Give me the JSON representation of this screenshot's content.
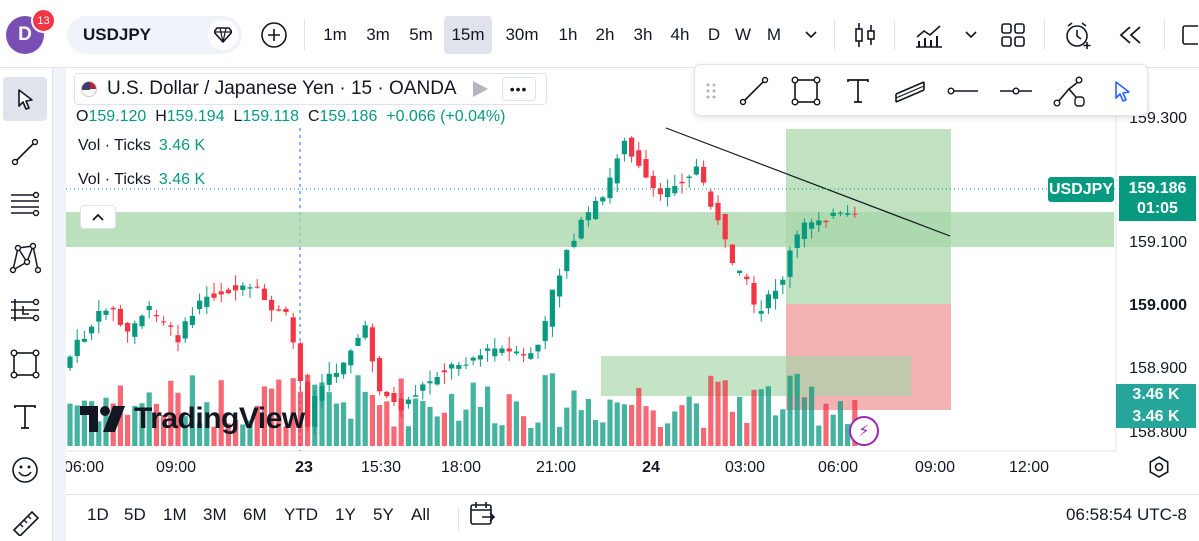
{
  "user": {
    "initial": "D",
    "notifications": "13"
  },
  "symbol": "USDJPY",
  "intervals": [
    "1m",
    "3m",
    "5m",
    "15m",
    "30m",
    "1h",
    "2h",
    "3h",
    "4h",
    "D",
    "W",
    "M"
  ],
  "active_interval": "15m",
  "legend": {
    "title": "U.S. Dollar / Japanese Yen",
    "interval": "15",
    "exchange": "OANDA",
    "open_label": "O",
    "open": "159.120",
    "high_label": "H",
    "high": "159.194",
    "low_label": "L",
    "low": "159.118",
    "close_label": "C",
    "close": "159.186",
    "change": "+0.066 (+0.04%)",
    "volume_rows": [
      {
        "label": "Vol · Ticks",
        "value": "3.46 K"
      },
      {
        "label": "Vol · Ticks",
        "value": "3.46 K"
      }
    ]
  },
  "watermark": "TradingView",
  "price_scale": [
    "159.300",
    "159.100",
    "159.000",
    "158.900",
    "158.800"
  ],
  "price_tags": {
    "symbol": "USDJPY",
    "last_price": "159.186",
    "countdown": "01:05",
    "volume_1": "3.46 K",
    "volume_2": "3.46 K"
  },
  "time_axis": [
    "06:00",
    "09:00",
    "23",
    "15:30",
    "18:00",
    "21:00",
    "24",
    "03:00",
    "06:00",
    "09:00",
    "12:00"
  ],
  "date_ranges": [
    "1D",
    "5D",
    "1M",
    "3M",
    "6M",
    "YTD",
    "1Y",
    "5Y",
    "All"
  ],
  "clock": "06:58:54 UTC-8",
  "colors": {
    "up": "#089981",
    "down": "#f23645",
    "zone_green": "#a5d6a7",
    "zone_red": "#ef9a9a",
    "accent": "#2962ff",
    "badge": "#f23645",
    "avatar": "#7a4fb5"
  },
  "icons": {
    "top": [
      "add-symbol-icon",
      "bar-style-icon",
      "indicators-icon",
      "chevron-down-icon",
      "layout-icon",
      "alert-icon",
      "replay-icon",
      "rectangle-icon"
    ],
    "left": [
      "cursor-icon",
      "trendline-icon",
      "fib-icon",
      "pattern-icon",
      "prediction-icon",
      "shape-icon",
      "text-icon",
      "emoji-icon",
      "ruler-icon"
    ]
  }
}
